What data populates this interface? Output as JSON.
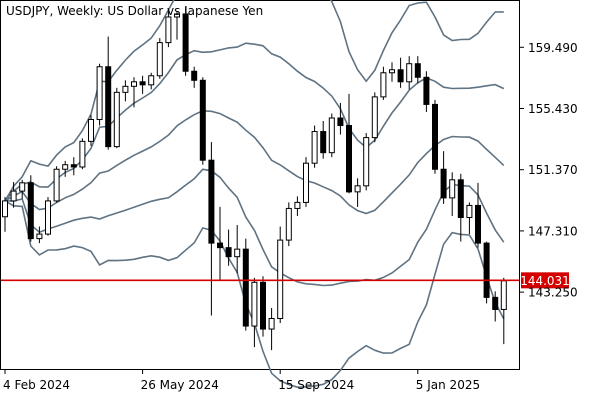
{
  "chart_data": {
    "type": "candlestick",
    "title": "USDJPY, Weekly:  US Dollar vs Japanese Yen",
    "y_ticks": [
      "159.490",
      "155.430",
      "151.370",
      "147.310",
      "143.250"
    ],
    "y_tick_values": [
      159.49,
      155.43,
      151.37,
      147.31,
      143.25
    ],
    "x_ticks": [
      "4 Feb 2024",
      "26 May 2024",
      "15 Sep 2024",
      "5 Jan 2025"
    ],
    "x_tick_indices": [
      0,
      16,
      32,
      48
    ],
    "ylim": [
      138.15,
      162.56
    ],
    "current_price": {
      "value": 144.031,
      "label": "144.031"
    },
    "colors": {
      "line": "#5f7383",
      "bull": "#ffffff",
      "bear": "#000000",
      "price_line": "#d40000",
      "price_label_bg": "#d40000",
      "price_label_text": "#ffffff"
    },
    "grid": false,
    "series": [
      {
        "name": "",
        "values": [
          [
            148.25,
            149.55,
            147.25,
            149.3
          ],
          [
            149.3,
            150.55,
            148.85,
            149.95
          ],
          [
            149.95,
            150.7,
            149.45,
            150.5
          ],
          [
            150.5,
            151.0,
            146.6,
            146.8
          ],
          [
            146.8,
            147.6,
            146.5,
            147.1
          ],
          [
            147.1,
            149.55,
            147.0,
            149.3
          ],
          [
            149.3,
            151.6,
            149.2,
            151.4
          ],
          [
            151.4,
            151.95,
            150.9,
            151.7
          ],
          [
            151.7,
            152.2,
            151.0,
            151.55
          ],
          [
            151.55,
            153.45,
            151.4,
            153.25
          ],
          [
            153.25,
            155.0,
            152.95,
            154.7
          ],
          [
            154.7,
            158.4,
            154.3,
            158.2
          ],
          [
            158.2,
            160.2,
            152.7,
            152.9
          ],
          [
            152.9,
            156.8,
            152.8,
            156.5
          ],
          [
            156.5,
            157.3,
            155.9,
            156.9
          ],
          [
            156.9,
            157.5,
            155.5,
            157.2
          ],
          [
            157.2,
            157.6,
            156.4,
            157.0
          ],
          [
            157.0,
            157.8,
            156.7,
            157.6
          ],
          [
            157.6,
            160.1,
            157.4,
            159.8
          ],
          [
            159.8,
            161.95,
            159.5,
            161.5
          ],
          [
            161.5,
            161.9,
            160.0,
            161.7
          ],
          [
            161.7,
            162.2,
            157.6,
            157.9
          ],
          [
            157.9,
            158.2,
            156.8,
            157.3
          ],
          [
            157.3,
            157.5,
            151.7,
            152.0
          ],
          [
            152.0,
            153.2,
            141.7,
            146.5
          ],
          [
            146.5,
            148.9,
            144.0,
            146.2
          ],
          [
            146.2,
            147.4,
            145.0,
            145.6
          ],
          [
            145.6,
            147.7,
            144.5,
            146.1
          ],
          [
            146.1,
            146.8,
            140.7,
            141.0
          ],
          [
            141.0,
            144.2,
            139.6,
            143.9
          ],
          [
            143.9,
            144.3,
            140.3,
            140.8
          ],
          [
            140.8,
            142.2,
            139.4,
            141.5
          ],
          [
            141.5,
            147.6,
            141.2,
            146.7
          ],
          [
            146.7,
            149.2,
            146.3,
            148.8
          ],
          [
            148.8,
            149.6,
            148.3,
            149.2
          ],
          [
            149.2,
            152.2,
            148.9,
            151.8
          ],
          [
            151.8,
            154.3,
            151.5,
            153.9
          ],
          [
            153.9,
            154.6,
            152.1,
            152.5
          ],
          [
            152.5,
            155.1,
            152.2,
            154.8
          ],
          [
            154.8,
            155.8,
            153.7,
            154.3
          ],
          [
            154.3,
            156.4,
            149.8,
            149.9
          ],
          [
            149.9,
            150.8,
            148.9,
            150.3
          ],
          [
            150.3,
            153.8,
            150.0,
            153.5
          ],
          [
            153.5,
            156.5,
            153.2,
            156.2
          ],
          [
            156.2,
            158.2,
            156.0,
            157.8
          ],
          [
            157.8,
            158.5,
            157.2,
            158.0
          ],
          [
            158.0,
            158.8,
            156.8,
            157.2
          ],
          [
            157.2,
            158.9,
            156.7,
            158.4
          ],
          [
            158.4,
            158.9,
            157.1,
            157.5
          ],
          [
            157.5,
            157.9,
            155.2,
            155.7
          ],
          [
            155.7,
            156.0,
            151.1,
            151.4
          ],
          [
            151.4,
            152.6,
            149.1,
            149.5
          ],
          [
            149.5,
            151.2,
            148.3,
            150.7
          ],
          [
            150.7,
            151.1,
            146.6,
            148.2
          ],
          [
            148.2,
            149.2,
            147.1,
            149.0
          ],
          [
            149.0,
            150.5,
            146.2,
            146.5
          ],
          [
            146.5,
            146.6,
            142.5,
            142.9
          ],
          [
            142.9,
            143.3,
            141.3,
            142.1
          ],
          [
            142.1,
            144.2,
            139.8,
            144.0
          ]
        ]
      }
    ]
  }
}
